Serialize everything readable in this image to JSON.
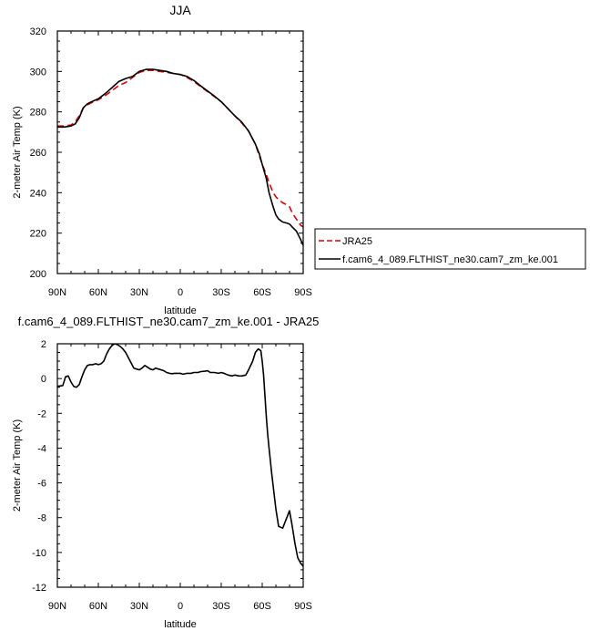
{
  "chart_data": [
    {
      "type": "line",
      "title": "JJA",
      "xlabel": "latitude",
      "ylabel": "2-meter Air Temp (K)",
      "xlim": [
        90,
        -90
      ],
      "ylim": [
        200,
        320
      ],
      "xticks": [
        90,
        60,
        30,
        0,
        -30,
        -60,
        -90
      ],
      "xtick_labels": [
        "90N",
        "60N",
        "30N",
        "0",
        "30S",
        "60S",
        "90S"
      ],
      "yticks": [
        200,
        220,
        240,
        260,
        280,
        300,
        320
      ],
      "ytick_labels": [
        "200",
        "220",
        "240",
        "260",
        "280",
        "300",
        "320"
      ],
      "legend": {
        "position": "outside-right"
      },
      "series": [
        {
          "name": "JRA25",
          "color": "#dd0000",
          "dash": "dashed",
          "x": [
            90,
            85,
            80,
            77,
            74,
            71,
            68,
            65,
            60,
            55,
            50,
            45,
            40,
            35,
            30,
            25,
            20,
            15,
            10,
            5,
            0,
            -5,
            -10,
            -15,
            -20,
            -25,
            -30,
            -35,
            -40,
            -45,
            -50,
            -55,
            -58,
            -60,
            -63,
            -65,
            -68,
            -70,
            -72,
            -75,
            -78,
            -80,
            -82,
            -85,
            -88,
            -90
          ],
          "y": [
            273,
            273,
            273.5,
            275,
            278,
            282,
            283.5,
            284.5,
            286,
            288,
            290.5,
            293,
            294.5,
            297,
            299.5,
            300.5,
            300.5,
            300,
            299.5,
            299,
            298.5,
            297,
            295,
            292.5,
            290,
            287.5,
            285,
            281.5,
            278,
            274.5,
            270.5,
            264,
            258,
            254,
            249,
            245,
            240,
            238,
            236.5,
            235,
            234,
            233,
            230,
            227,
            224,
            223
          ]
        },
        {
          "name": "f.cam6_4_089.FLTHIST_ne30.cam7_zm_ke.001",
          "color": "#000000",
          "dash": "solid",
          "x": [
            90,
            85,
            80,
            77,
            74,
            71,
            68,
            65,
            60,
            55,
            50,
            45,
            40,
            35,
            30,
            25,
            20,
            15,
            10,
            5,
            0,
            -5,
            -10,
            -15,
            -20,
            -25,
            -30,
            -35,
            -40,
            -45,
            -50,
            -55,
            -58,
            -60,
            -63,
            -65,
            -68,
            -70,
            -72,
            -75,
            -78,
            -80,
            -82,
            -85,
            -88,
            -90
          ],
          "y": [
            272.5,
            272.5,
            273,
            274,
            277,
            282,
            284,
            285,
            286.5,
            289,
            292,
            295,
            296.5,
            297.5,
            300,
            301,
            301,
            300.5,
            300,
            299,
            298.5,
            297.5,
            295.5,
            292.8,
            290.3,
            287.8,
            285,
            281.5,
            278,
            275,
            270.5,
            264,
            259,
            254,
            247,
            240,
            233,
            229,
            227,
            225.5,
            225,
            224.5,
            223,
            221,
            217,
            214
          ]
        }
      ]
    },
    {
      "type": "line",
      "title": "f.cam6_4_089.FLTHIST_ne30.cam7_zm_ke.001 - JRA25",
      "xlabel": "latitude",
      "ylabel": "2-meter Air Temp (K)",
      "xlim": [
        90,
        -90
      ],
      "ylim": [
        -12,
        2
      ],
      "xticks": [
        90,
        60,
        30,
        0,
        -30,
        -60,
        -90
      ],
      "xtick_labels": [
        "90N",
        "60N",
        "30N",
        "0",
        "30S",
        "60S",
        "90S"
      ],
      "yticks": [
        -12,
        -10,
        -8,
        -6,
        -4,
        -2,
        0,
        2
      ],
      "ytick_labels": [
        "-12",
        "-10",
        "-8",
        "-6",
        "-4",
        "-2",
        "0",
        "2"
      ],
      "series": [
        {
          "color": "#000000",
          "dash": "solid",
          "x": [
            90,
            86,
            84,
            82,
            80,
            78,
            76,
            74,
            72,
            70,
            68,
            66,
            64,
            62,
            60,
            58,
            56,
            54,
            52,
            50,
            48,
            46,
            44,
            42,
            40,
            38,
            36,
            34,
            32,
            30,
            28,
            26,
            24,
            22,
            20,
            18,
            16,
            14,
            12,
            10,
            8,
            6,
            4,
            2,
            0,
            -2,
            -5,
            -8,
            -10,
            -13,
            -15,
            -18,
            -20,
            -22,
            -25,
            -28,
            -30,
            -32,
            -35,
            -38,
            -40,
            -43,
            -45,
            -48,
            -50,
            -53,
            -55,
            -57,
            -59,
            -60,
            -61,
            -62,
            -63,
            -64,
            -65,
            -67,
            -70,
            -72,
            -75,
            -78,
            -80,
            -82,
            -84,
            -86,
            -88,
            -90
          ],
          "y": [
            -0.45,
            -0.4,
            0.1,
            0.15,
            -0.2,
            -0.45,
            -0.5,
            -0.35,
            0.1,
            0.5,
            0.75,
            0.8,
            0.8,
            0.85,
            0.8,
            0.85,
            1.0,
            1.4,
            1.7,
            1.9,
            2.0,
            1.95,
            1.85,
            1.7,
            1.5,
            1.2,
            0.9,
            0.6,
            0.55,
            0.5,
            0.6,
            0.75,
            0.65,
            0.55,
            0.5,
            0.6,
            0.55,
            0.5,
            0.45,
            0.35,
            0.3,
            0.28,
            0.3,
            0.3,
            0.3,
            0.25,
            0.3,
            0.3,
            0.35,
            0.35,
            0.4,
            0.42,
            0.45,
            0.35,
            0.35,
            0.3,
            0.35,
            0.3,
            0.2,
            0.15,
            0.2,
            0.15,
            0.15,
            0.2,
            0.5,
            1.0,
            1.5,
            1.7,
            1.6,
            1.0,
            0.2,
            -1.0,
            -2.2,
            -3.2,
            -4.0,
            -5.5,
            -7.5,
            -8.5,
            -8.6,
            -8.0,
            -7.6,
            -8.5,
            -9.5,
            -10.3,
            -10.6,
            -10.8
          ]
        }
      ]
    }
  ]
}
